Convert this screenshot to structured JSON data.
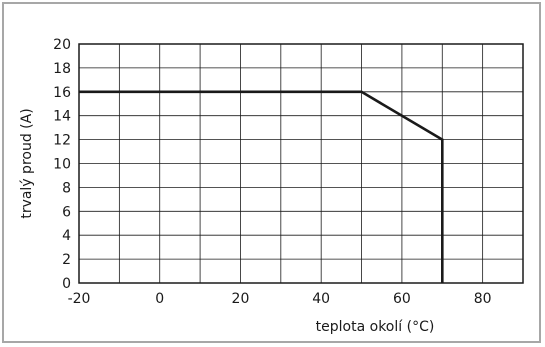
{
  "chart_data": {
    "type": "line",
    "xlabel": "teplota okolí (°C)",
    "ylabel": "trvalý proud (A)",
    "xlim": [
      -20,
      90
    ],
    "ylim": [
      0,
      20
    ],
    "x_ticks": [
      -20,
      0,
      20,
      40,
      60,
      80
    ],
    "y_ticks": [
      0,
      2,
      4,
      6,
      8,
      10,
      12,
      14,
      16,
      18,
      20
    ],
    "x_grid_step": 10,
    "y_grid_step": 2,
    "grid": true,
    "legend": "none",
    "series": [
      {
        "x": [
          -20,
          50,
          70,
          70
        ],
        "y": [
          16,
          16,
          12,
          0
        ]
      }
    ]
  }
}
